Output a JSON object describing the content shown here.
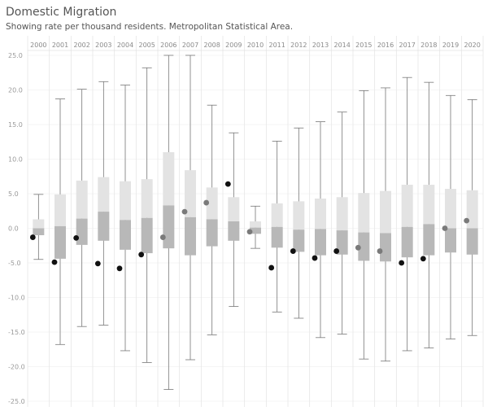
{
  "title": "Domestic Migration",
  "subtitle": "Showing rate per thousand residents. Metropolitan Statistical Area.",
  "colors": {
    "upper_box": "#e3e3e3",
    "lower_box": "#b8b8b8",
    "whisker": "#777777",
    "point_dark": "#111111",
    "point_gray": "#7a7a7a",
    "grid": "#ececec"
  },
  "chart_data": {
    "type": "box",
    "categories": [
      "2000",
      "2001",
      "2002",
      "2003",
      "2004",
      "2005",
      "2006",
      "2007",
      "2008",
      "2009",
      "2010",
      "2011",
      "2012",
      "2013",
      "2014",
      "2015",
      "2016",
      "2017",
      "2018",
      "2019",
      "2020"
    ],
    "ylim": [
      -25,
      25
    ],
    "yticks": [
      "25.0",
      "20.0",
      "15.0",
      "10.0",
      "5.0",
      "0.0",
      "-5.0",
      "-10.0",
      "-15.0",
      "-20.0",
      "-25.0"
    ],
    "ytick_values": [
      25,
      20,
      15,
      10,
      5,
      0,
      -5,
      -10,
      -15,
      -20,
      -25
    ],
    "grid": true,
    "boxes": [
      {
        "min": -4.5,
        "q1": -1.0,
        "median": 0.0,
        "q3": 1.3,
        "max": 4.9,
        "point": -1.3,
        "point_dark": true
      },
      {
        "min": -16.8,
        "q1": -4.4,
        "median": 0.3,
        "q3": 4.9,
        "max": 18.7,
        "point": -4.9,
        "point_dark": true
      },
      {
        "min": -14.2,
        "q1": -2.4,
        "median": 1.4,
        "q3": 6.9,
        "max": 20.1,
        "point": -1.4,
        "point_dark": true
      },
      {
        "min": -14.0,
        "q1": -1.8,
        "median": 2.4,
        "q3": 7.4,
        "max": 21.2,
        "point": -5.1,
        "point_dark": true
      },
      {
        "min": -17.7,
        "q1": -3.1,
        "median": 1.2,
        "q3": 6.8,
        "max": 20.7,
        "point": -5.8,
        "point_dark": true
      },
      {
        "min": -19.4,
        "q1": -3.6,
        "median": 1.5,
        "q3": 7.1,
        "max": 23.2,
        "point": -3.8,
        "point_dark": true
      },
      {
        "min": -23.3,
        "q1": -2.9,
        "median": 3.3,
        "q3": 11.0,
        "max": 25.0,
        "point": -1.3,
        "point_dark": false
      },
      {
        "min": -19.0,
        "q1": -3.9,
        "median": 1.6,
        "q3": 8.4,
        "max": 25.0,
        "point": 2.4,
        "point_dark": false
      },
      {
        "min": -15.4,
        "q1": -2.6,
        "median": 1.3,
        "q3": 5.9,
        "max": 17.8,
        "point": 3.7,
        "point_dark": false
      },
      {
        "min": -11.3,
        "q1": -1.8,
        "median": 1.0,
        "q3": 4.5,
        "max": 13.8,
        "point": 6.4,
        "point_dark": true
      },
      {
        "min": -2.9,
        "q1": -0.8,
        "median": 0.1,
        "q3": 1.0,
        "max": 3.2,
        "point": -0.5,
        "point_dark": false
      },
      {
        "min": -12.1,
        "q1": -2.8,
        "median": 0.2,
        "q3": 3.6,
        "max": 12.6,
        "point": -5.7,
        "point_dark": true
      },
      {
        "min": -13.0,
        "q1": -3.4,
        "median": -0.2,
        "q3": 3.9,
        "max": 14.5,
        "point": -3.3,
        "point_dark": true
      },
      {
        "min": -15.8,
        "q1": -3.9,
        "median": -0.1,
        "q3": 4.3,
        "max": 15.4,
        "point": -4.3,
        "point_dark": true
      },
      {
        "min": -15.3,
        "q1": -3.8,
        "median": -0.3,
        "q3": 4.5,
        "max": 16.8,
        "point": -3.3,
        "point_dark": true
      },
      {
        "min": -18.9,
        "q1": -4.7,
        "median": -0.6,
        "q3": 5.1,
        "max": 19.9,
        "point": -2.8,
        "point_dark": false
      },
      {
        "min": -19.2,
        "q1": -4.8,
        "median": -0.7,
        "q3": 5.4,
        "max": 20.3,
        "point": -3.3,
        "point_dark": false
      },
      {
        "min": -17.7,
        "q1": -4.2,
        "median": 0.2,
        "q3": 6.3,
        "max": 21.8,
        "point": -5.0,
        "point_dark": true
      },
      {
        "min": -17.3,
        "q1": -3.9,
        "median": 0.6,
        "q3": 6.3,
        "max": 21.1,
        "point": -4.4,
        "point_dark": true
      },
      {
        "min": -16.0,
        "q1": -3.5,
        "median": 0.0,
        "q3": 5.7,
        "max": 19.2,
        "point": 0.0,
        "point_dark": false
      },
      {
        "min": -15.5,
        "q1": -3.8,
        "median": 0.0,
        "q3": 5.5,
        "max": 18.6,
        "point": 1.1,
        "point_dark": false
      }
    ]
  }
}
